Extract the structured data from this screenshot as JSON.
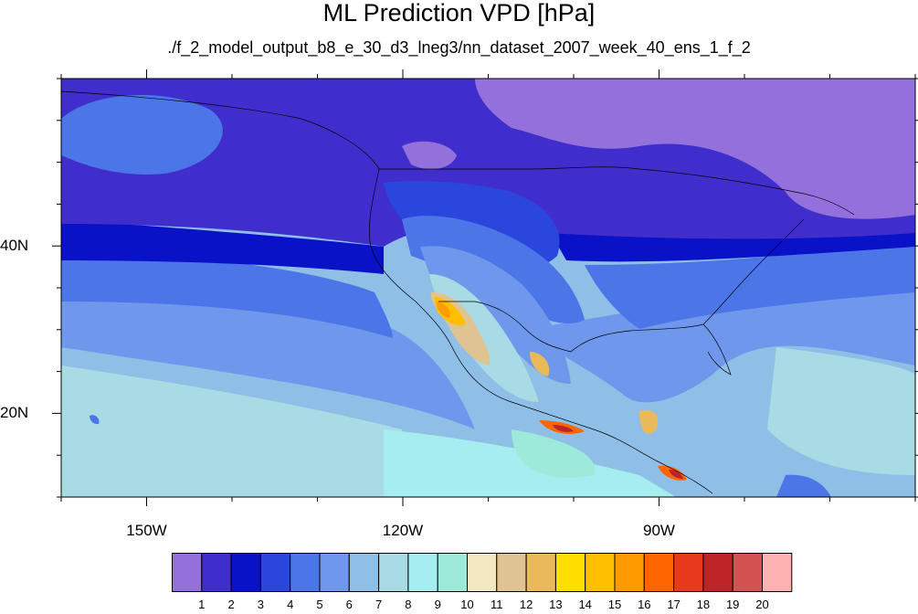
{
  "title": "ML Prediction VPD [hPa]",
  "subtitle": "./f_2_model_output_b8_e_30_d3_lneg3/nn_dataset_2007_week_40_ens_1_f_2",
  "map": {
    "lon_range": [
      -160,
      -60
    ],
    "lat_range": [
      10,
      60
    ],
    "lon_ticks": [
      {
        "value": -150,
        "label": "150W"
      },
      {
        "value": -120,
        "label": "120W"
      },
      {
        "value": -90,
        "label": "90W"
      }
    ],
    "lat_ticks": [
      {
        "value": 20,
        "label": "20N"
      },
      {
        "value": 40,
        "label": "40N"
      }
    ]
  },
  "colorbar": {
    "colors": [
      "#9370db",
      "#3f2ecc",
      "#0a12c8",
      "#2a46dc",
      "#4c76e8",
      "#6f97ec",
      "#8fbfe6",
      "#a8dbe3",
      "#a6edf0",
      "#9deadb",
      "#f3e8c2",
      "#e0c393",
      "#e9b95a",
      "#ffdf00",
      "#ffbf00",
      "#ff9a00",
      "#ff6600",
      "#e8391d",
      "#bd2428",
      "#d25252",
      "#ffb2b2"
    ],
    "labels": [
      "1",
      "2",
      "3",
      "4",
      "5",
      "6",
      "7",
      "8",
      "9",
      "10",
      "11",
      "12",
      "13",
      "14",
      "15",
      "16",
      "17",
      "18",
      "19",
      "20"
    ]
  }
}
